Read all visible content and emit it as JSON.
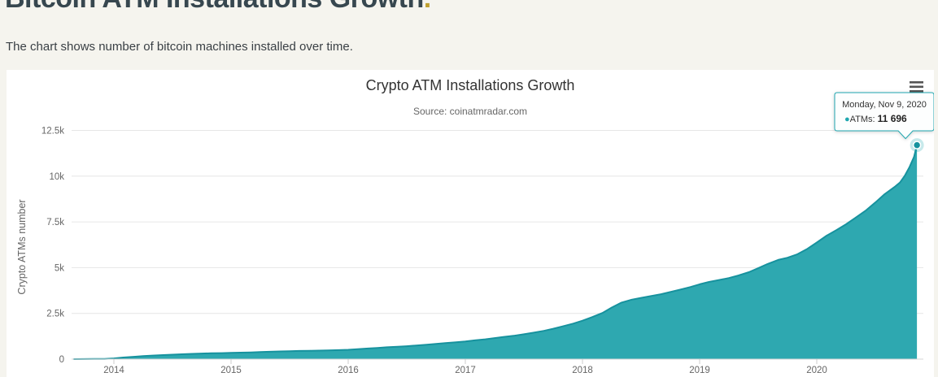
{
  "page": {
    "heading": "Bitcoin ATM Installations Growth",
    "heading_period": ".",
    "subheading": "The chart shows number of bitcoin machines installed over time.",
    "colors": {
      "heading_text": "#37474f",
      "heading_period_gold": "#bfa02f",
      "page_background": "#f5f4ee",
      "card_background": "#ffffff"
    }
  },
  "menu": {
    "icon": "hamburger-menu-icon",
    "bar_color": "#555555"
  },
  "chart_data": {
    "type": "area",
    "title": "Crypto ATM Installations Growth",
    "subtitle": "Source: coinatmradar.com",
    "xlabel": "",
    "ylabel": "Crypto ATMs number",
    "ylim": [
      0,
      12500
    ],
    "grid": true,
    "legend_position": "none",
    "colors": {
      "area_fill": "#2EA8B0",
      "line": "#17929E",
      "grid_line": "#e6e6e6",
      "axis_label": "#666666",
      "tooltip_border": "#20a7b0",
      "tooltip_background": "#fdfefe"
    },
    "yticks": [
      {
        "value": 0,
        "label": "0"
      },
      {
        "value": 2500,
        "label": "2.5k"
      },
      {
        "value": 5000,
        "label": "5k"
      },
      {
        "value": 7500,
        "label": "7.5k"
      },
      {
        "value": 10000,
        "label": "10k"
      },
      {
        "value": 12500,
        "label": "12.5k"
      }
    ],
    "xticks": [
      {
        "value": 2014,
        "label": "2014"
      },
      {
        "value": 2015,
        "label": "2015"
      },
      {
        "value": 2016,
        "label": "2016"
      },
      {
        "value": 2017,
        "label": "2017"
      },
      {
        "value": 2018,
        "label": "2018"
      },
      {
        "value": 2019,
        "label": "2019"
      },
      {
        "value": 2020,
        "label": "2020"
      }
    ],
    "series": [
      {
        "name": "ATMs",
        "points": [
          [
            2013.66,
            2
          ],
          [
            2013.75,
            4
          ],
          [
            2013.83,
            8
          ],
          [
            2013.92,
            15
          ],
          [
            2014.0,
            40
          ],
          [
            2014.08,
            90
          ],
          [
            2014.17,
            130
          ],
          [
            2014.25,
            165
          ],
          [
            2014.33,
            195
          ],
          [
            2014.42,
            220
          ],
          [
            2014.5,
            245
          ],
          [
            2014.58,
            268
          ],
          [
            2014.67,
            288
          ],
          [
            2014.75,
            305
          ],
          [
            2014.83,
            318
          ],
          [
            2014.92,
            330
          ],
          [
            2015.0,
            342
          ],
          [
            2015.08,
            355
          ],
          [
            2015.17,
            370
          ],
          [
            2015.25,
            390
          ],
          [
            2015.33,
            405
          ],
          [
            2015.42,
            420
          ],
          [
            2015.5,
            435
          ],
          [
            2015.58,
            448
          ],
          [
            2015.67,
            458
          ],
          [
            2015.75,
            468
          ],
          [
            2015.83,
            480
          ],
          [
            2015.92,
            495
          ],
          [
            2016.0,
            512
          ],
          [
            2016.08,
            545
          ],
          [
            2016.17,
            580
          ],
          [
            2016.25,
            615
          ],
          [
            2016.33,
            650
          ],
          [
            2016.42,
            675
          ],
          [
            2016.5,
            705
          ],
          [
            2016.58,
            745
          ],
          [
            2016.67,
            790
          ],
          [
            2016.75,
            835
          ],
          [
            2016.83,
            880
          ],
          [
            2016.92,
            925
          ],
          [
            2017.0,
            968
          ],
          [
            2017.08,
            1025
          ],
          [
            2017.17,
            1085
          ],
          [
            2017.25,
            1150
          ],
          [
            2017.33,
            1215
          ],
          [
            2017.42,
            1285
          ],
          [
            2017.5,
            1360
          ],
          [
            2017.58,
            1445
          ],
          [
            2017.67,
            1545
          ],
          [
            2017.75,
            1660
          ],
          [
            2017.83,
            1790
          ],
          [
            2017.92,
            1940
          ],
          [
            2018.0,
            2100
          ],
          [
            2018.08,
            2290
          ],
          [
            2018.17,
            2520
          ],
          [
            2018.25,
            2820
          ],
          [
            2018.33,
            3080
          ],
          [
            2018.42,
            3250
          ],
          [
            2018.5,
            3350
          ],
          [
            2018.58,
            3440
          ],
          [
            2018.67,
            3550
          ],
          [
            2018.75,
            3670
          ],
          [
            2018.83,
            3790
          ],
          [
            2018.92,
            3940
          ],
          [
            2019.0,
            4090
          ],
          [
            2019.08,
            4220
          ],
          [
            2019.17,
            4330
          ],
          [
            2019.25,
            4430
          ],
          [
            2019.33,
            4570
          ],
          [
            2019.42,
            4750
          ],
          [
            2019.5,
            4970
          ],
          [
            2019.58,
            5200
          ],
          [
            2019.67,
            5420
          ],
          [
            2019.75,
            5540
          ],
          [
            2019.83,
            5720
          ],
          [
            2019.92,
            6030
          ],
          [
            2020.0,
            6370
          ],
          [
            2020.08,
            6730
          ],
          [
            2020.17,
            7060
          ],
          [
            2020.25,
            7370
          ],
          [
            2020.33,
            7720
          ],
          [
            2020.42,
            8130
          ],
          [
            2020.5,
            8560
          ],
          [
            2020.58,
            9020
          ],
          [
            2020.67,
            9440
          ],
          [
            2020.71,
            9650
          ],
          [
            2020.75,
            10010
          ],
          [
            2020.79,
            10480
          ],
          [
            2020.83,
            11050
          ],
          [
            2020.855,
            11696
          ]
        ]
      }
    ],
    "tooltip": {
      "date": "Monday, Nov 9, 2020",
      "bullet": "●",
      "series_label": "ATMs: ",
      "value": "11 696",
      "point": [
        2020.855,
        11696
      ]
    }
  }
}
